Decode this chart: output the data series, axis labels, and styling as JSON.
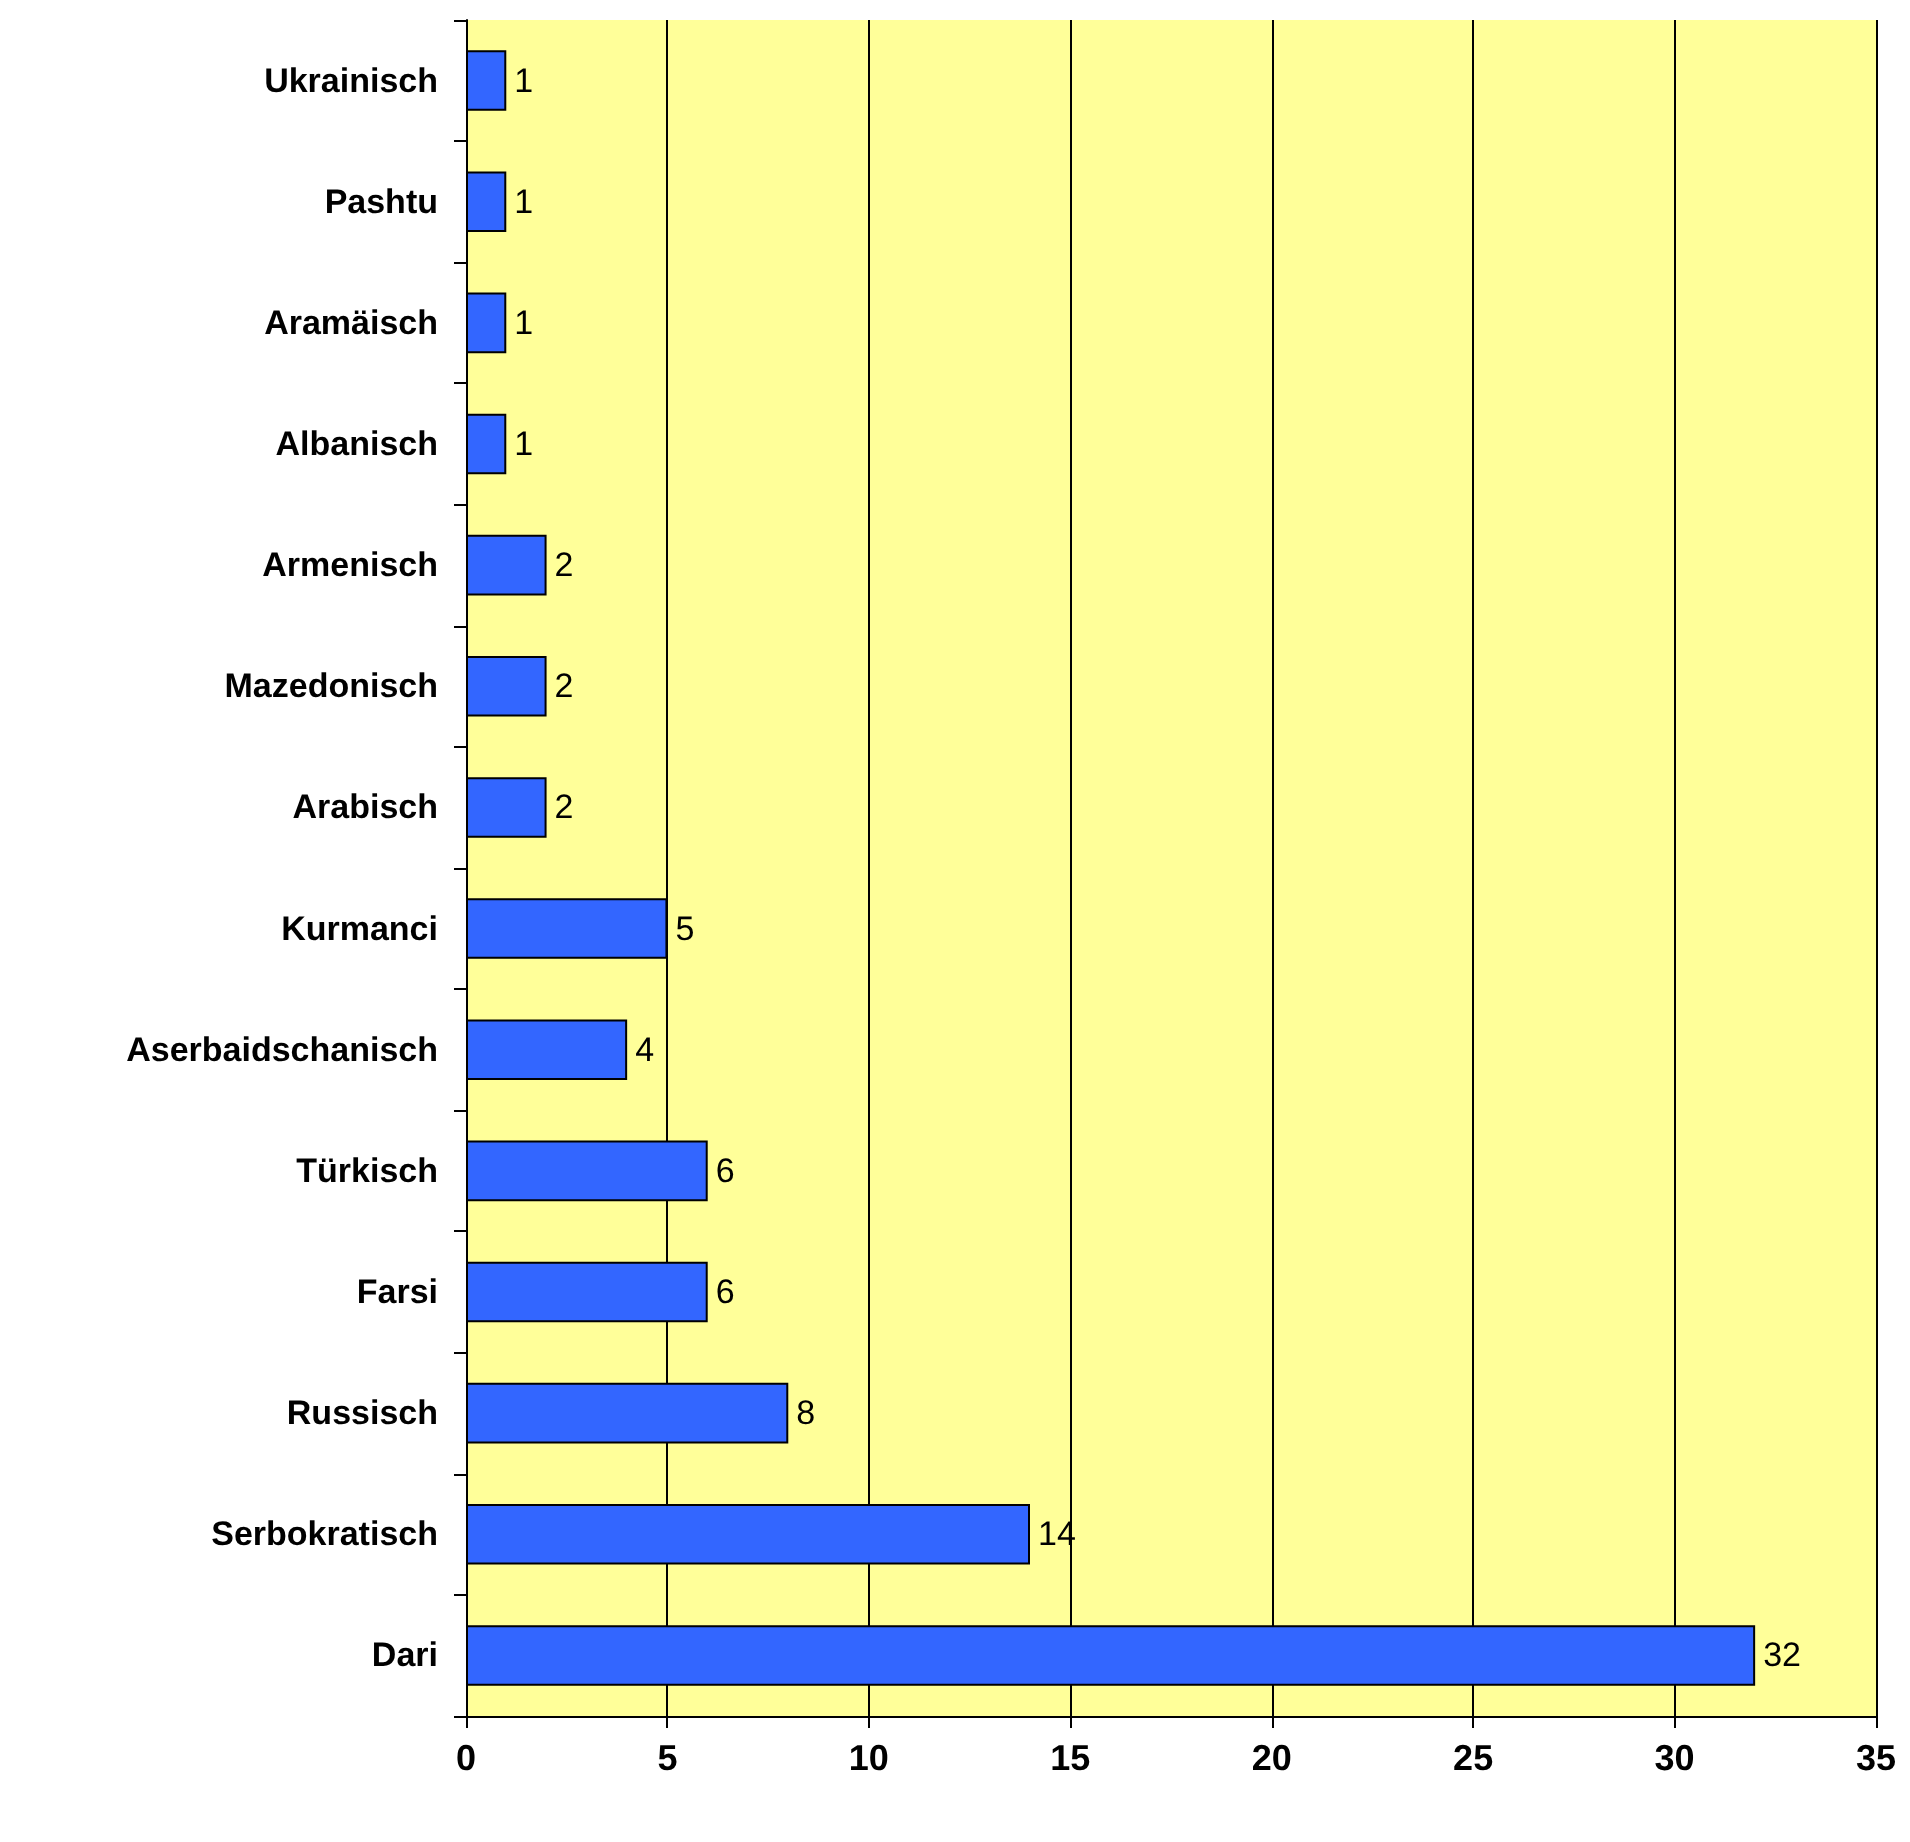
{
  "chart_data": {
    "type": "bar",
    "orientation": "horizontal",
    "categories": [
      "Ukrainisch",
      "Pashtu",
      "Aramäisch",
      "Albanisch",
      "Armenisch",
      "Mazedonisch",
      "Arabisch",
      "Kurmanci",
      "Aserbaidschanisch",
      "Türkisch",
      "Farsi",
      "Russisch",
      "Serbokratisch",
      "Dari"
    ],
    "values": [
      1,
      1,
      1,
      1,
      2,
      2,
      2,
      5,
      4,
      6,
      6,
      8,
      14,
      32
    ],
    "color": "#3366ff",
    "xlim": [
      0,
      35
    ],
    "xticks": [
      0,
      5,
      10,
      15,
      20,
      25,
      30,
      35
    ],
    "grid": "x",
    "data_labels": true
  }
}
